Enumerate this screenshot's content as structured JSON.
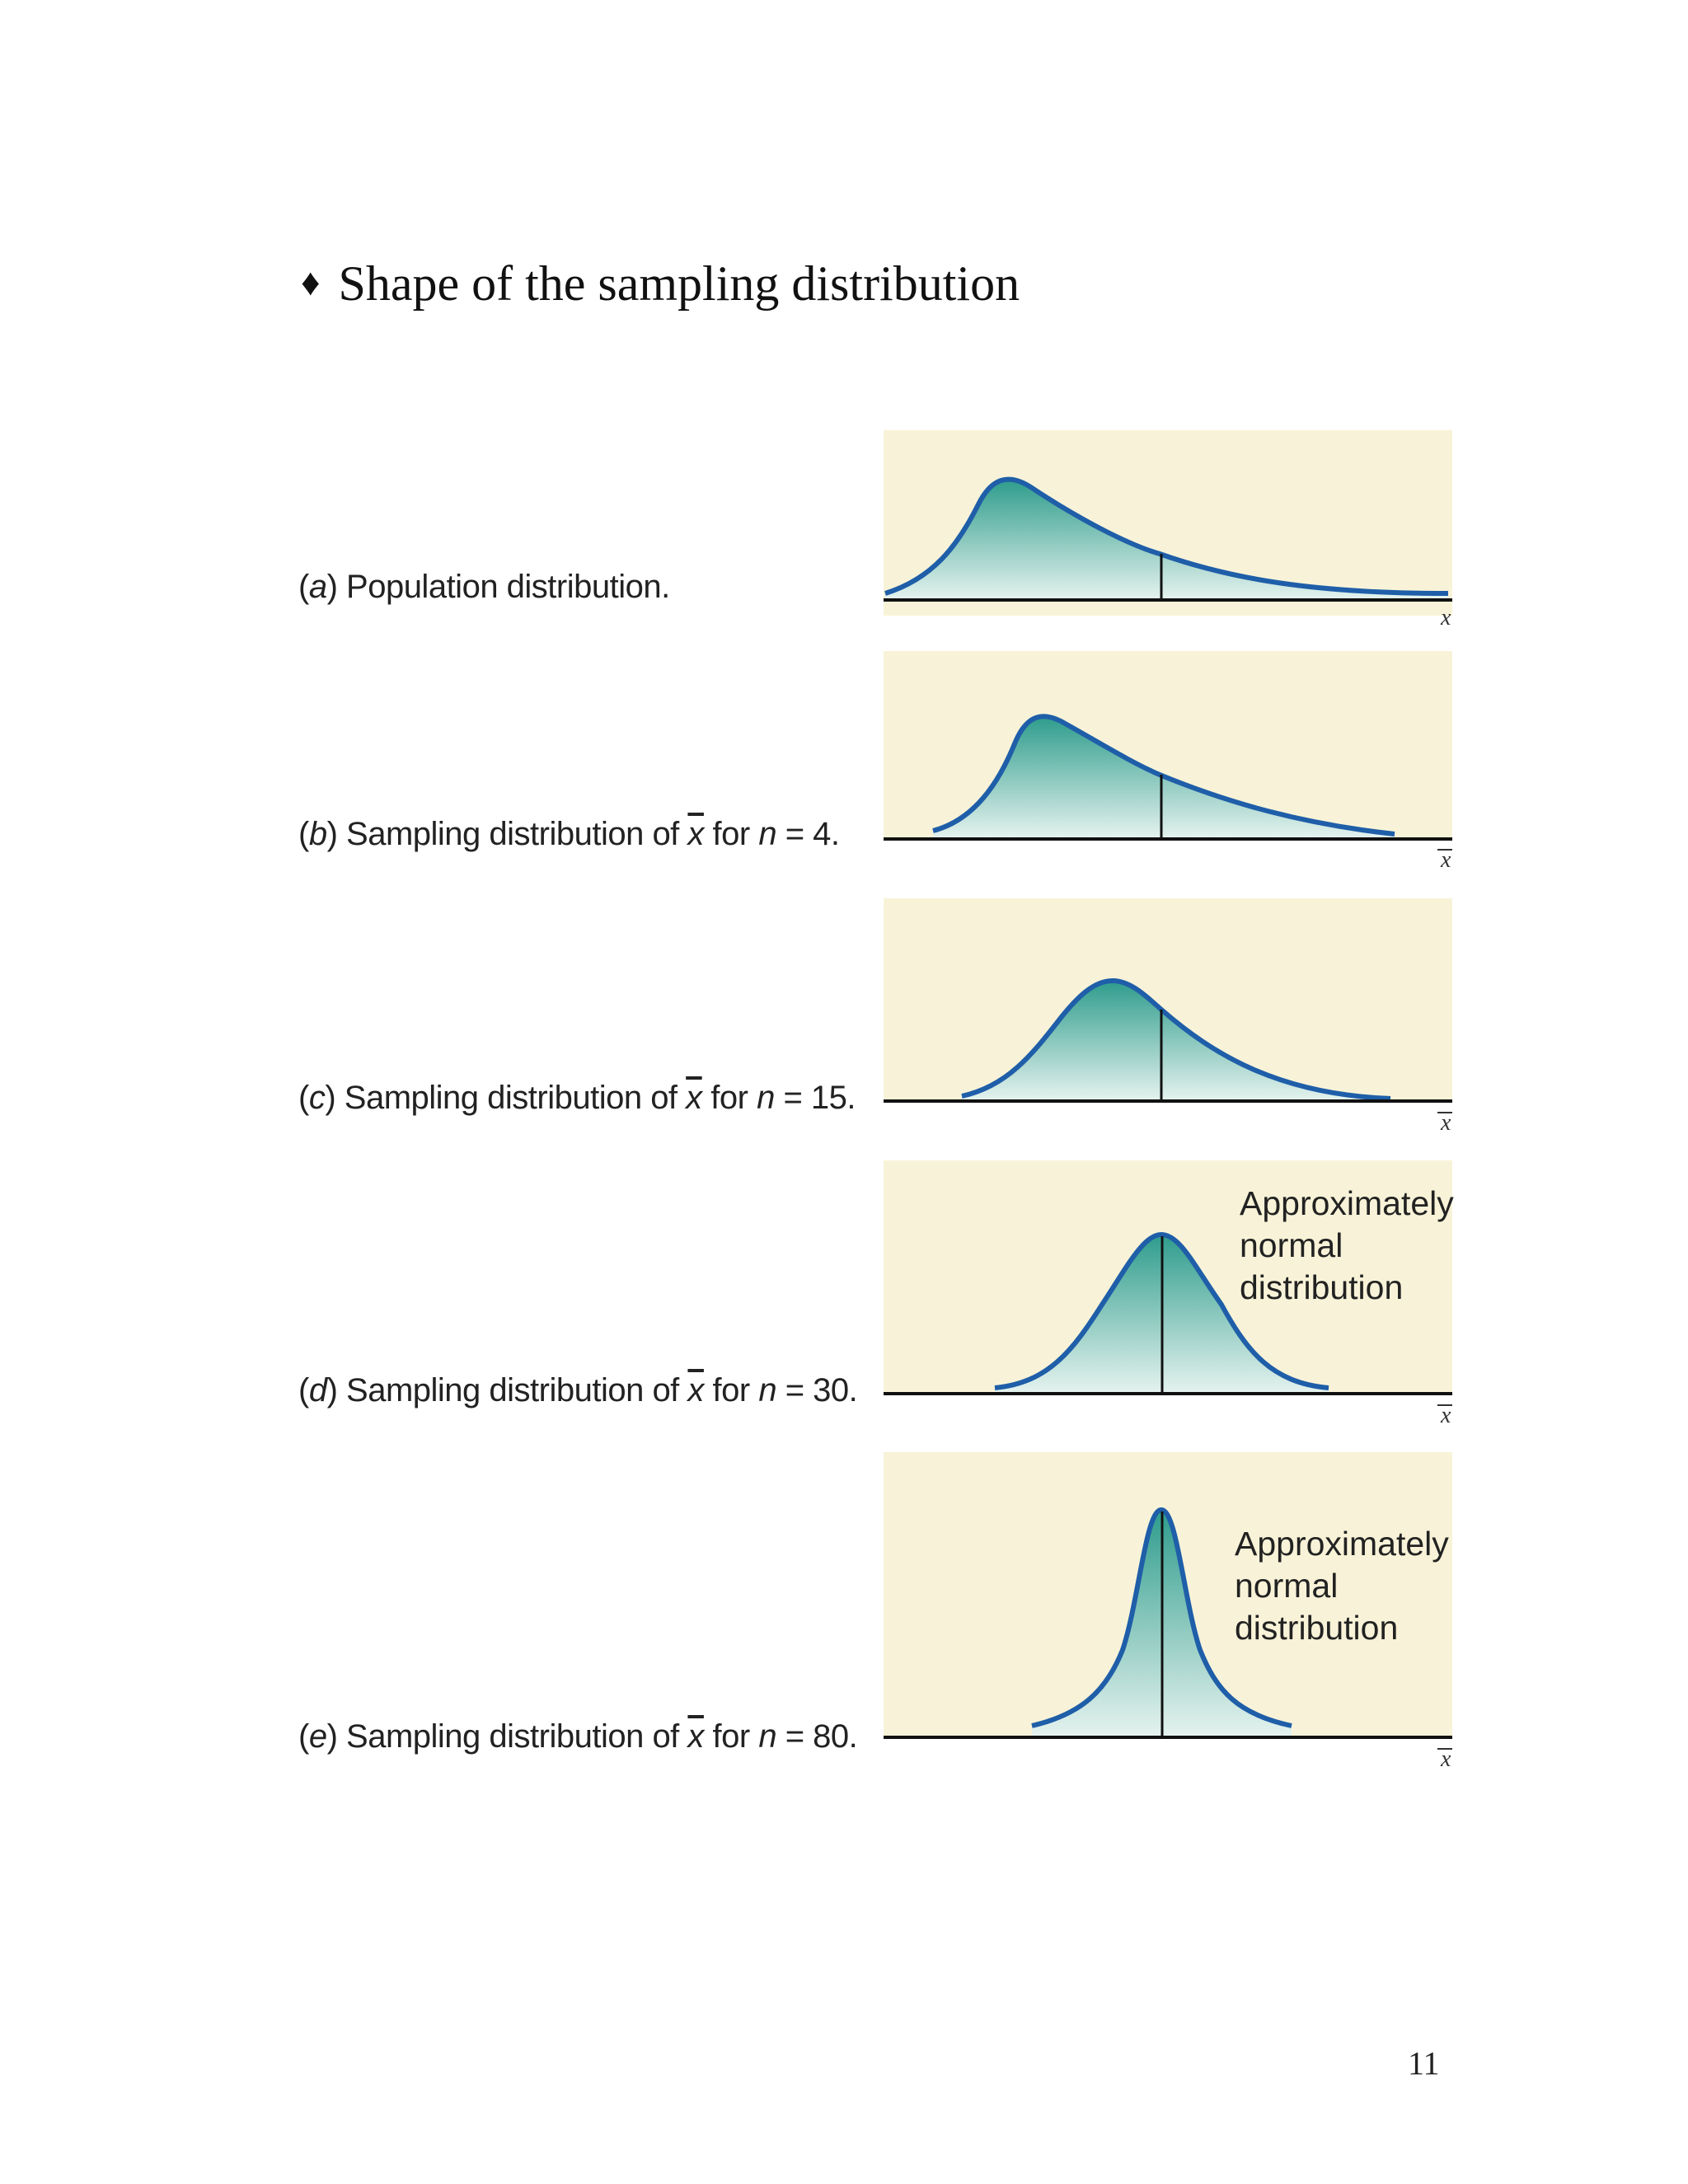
{
  "heading": {
    "bullet": "♦",
    "text": "Shape of the sampling distribution"
  },
  "rows": [
    {
      "letter": "a",
      "label_start": "Population distribution.",
      "label_mid": "",
      "n_var": "",
      "label_end": "",
      "axis": "x",
      "axis_bar": false,
      "annotation": []
    },
    {
      "letter": "b",
      "label_start": "Sampling distribution of ",
      "label_mid": " for ",
      "n_var": "n",
      "label_end": " = 4.",
      "axis": "x",
      "axis_bar": true,
      "annotation": []
    },
    {
      "letter": "c",
      "label_start": "Sampling distribution of ",
      "label_mid": " for ",
      "n_var": "n",
      "label_end": " = 15.",
      "axis": "x",
      "axis_bar": true,
      "annotation": []
    },
    {
      "letter": "d",
      "label_start": "Sampling distribution of ",
      "label_mid": " for ",
      "n_var": "n",
      "label_end": " = 30.",
      "axis": "x",
      "axis_bar": true,
      "annotation": [
        "Approximately",
        "normal",
        "distribution"
      ]
    },
    {
      "letter": "e",
      "label_start": "Sampling distribution of ",
      "label_mid": " for ",
      "n_var": "n",
      "label_end": " = 80.",
      "axis": "x",
      "axis_bar": true,
      "annotation": [
        "Approximately",
        "normal",
        "distribution"
      ]
    }
  ],
  "xbar_symbol": "x",
  "page_number": "11",
  "colors": {
    "panel_bg": "#f8f3d8",
    "curve": "#1f5ea8",
    "fill_top": "#2e9c8c",
    "fill_bottom": "#e6f3ef",
    "axis": "#111111"
  }
}
